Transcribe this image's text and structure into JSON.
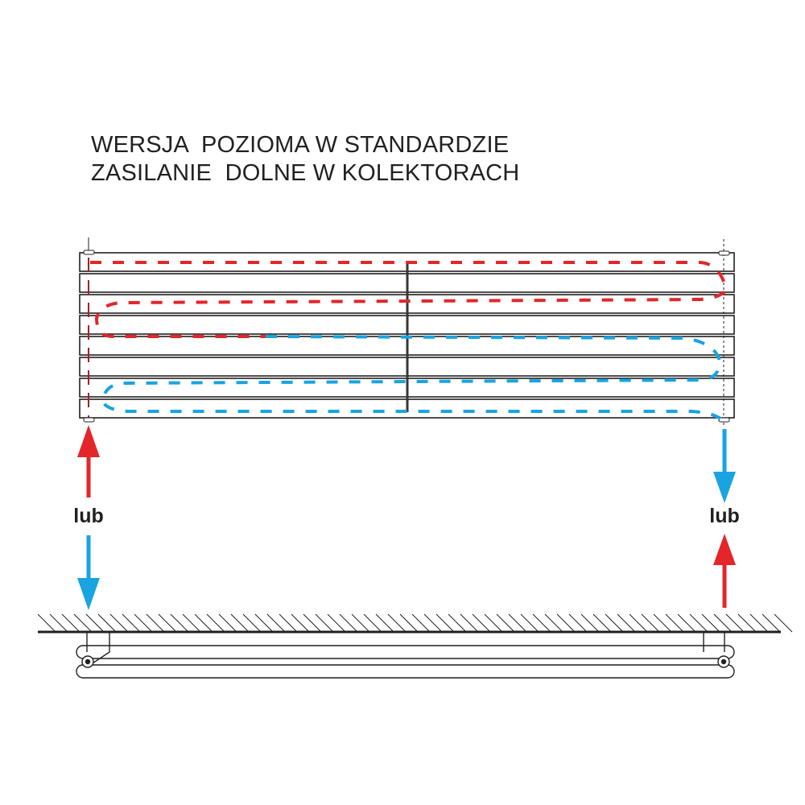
{
  "title": {
    "line1": "WERSJA  POZIOMA W STANDARDZIE",
    "line2": "ZASILANIE  DOLNE W KOLEKTORACH"
  },
  "labels": {
    "left_or": "lub",
    "right_or": "lub"
  },
  "colors": {
    "supply": "#e3262a",
    "return": "#18a4e0",
    "outline": "#231f20"
  },
  "radiator": {
    "tube_count": 8
  }
}
